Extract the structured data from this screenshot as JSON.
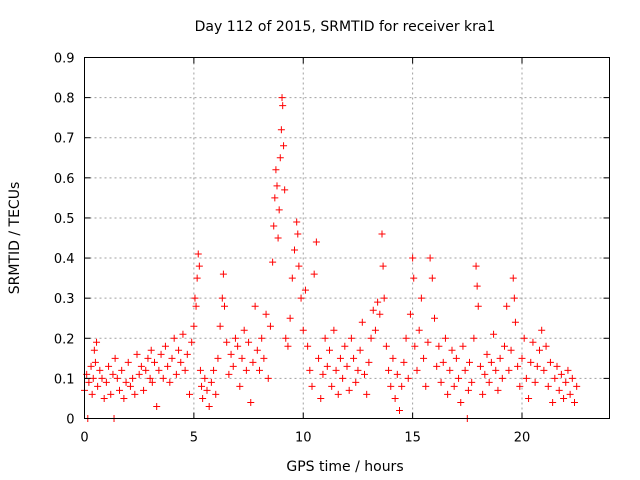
{
  "chart_data": {
    "type": "scatter",
    "title": "Day 112 of 2015, SRMTID for receiver kra1",
    "xlabel": "GPS time / hours",
    "ylabel": "SRMTID / TECUs",
    "xlim": [
      0,
      24
    ],
    "ylim": [
      0,
      0.9
    ],
    "xticks": [
      0,
      5,
      10,
      15,
      20
    ],
    "yticks": [
      0,
      0.1,
      0.2,
      0.3,
      0.4,
      0.5,
      0.6,
      0.7,
      0.8,
      0.9
    ],
    "xtick_labels": [
      "0",
      "5",
      "10",
      "15",
      "20"
    ],
    "ytick_labels": [
      "0",
      "0.1",
      "0.2",
      "0.3",
      "0.4",
      "0.5",
      "0.6",
      "0.7",
      "0.8",
      "0.9"
    ],
    "grid": true,
    "marker": "+",
    "color": "#ff0000",
    "series": [
      {
        "name": "SRMTID",
        "points": [
          [
            0.0,
            0.07
          ],
          [
            0.1,
            0.11
          ],
          [
            0.15,
            0.0
          ],
          [
            0.2,
            0.09
          ],
          [
            0.3,
            0.13
          ],
          [
            0.35,
            0.06
          ],
          [
            0.4,
            0.1
          ],
          [
            0.45,
            0.17
          ],
          [
            0.5,
            0.14
          ],
          [
            0.55,
            0.19
          ],
          [
            0.6,
            0.08
          ],
          [
            0.7,
            0.12
          ],
          [
            0.8,
            0.1
          ],
          [
            0.9,
            0.05
          ],
          [
            1.0,
            0.09
          ],
          [
            1.1,
            0.13
          ],
          [
            1.2,
            0.06
          ],
          [
            1.3,
            0.11
          ],
          [
            1.35,
            0.0
          ],
          [
            1.4,
            0.15
          ],
          [
            1.5,
            0.1
          ],
          [
            1.6,
            0.07
          ],
          [
            1.7,
            0.12
          ],
          [
            1.8,
            0.05
          ],
          [
            1.9,
            0.09
          ],
          [
            2.0,
            0.14
          ],
          [
            2.1,
            0.08
          ],
          [
            2.2,
            0.1
          ],
          [
            2.3,
            0.06
          ],
          [
            2.4,
            0.16
          ],
          [
            2.5,
            0.11
          ],
          [
            2.6,
            0.13
          ],
          [
            2.7,
            0.07
          ],
          [
            2.8,
            0.12
          ],
          [
            2.9,
            0.15
          ],
          [
            3.0,
            0.1
          ],
          [
            3.05,
            0.17
          ],
          [
            3.1,
            0.09
          ],
          [
            3.2,
            0.14
          ],
          [
            3.3,
            0.03
          ],
          [
            3.4,
            0.12
          ],
          [
            3.5,
            0.16
          ],
          [
            3.6,
            0.1
          ],
          [
            3.7,
            0.18
          ],
          [
            3.8,
            0.13
          ],
          [
            3.9,
            0.09
          ],
          [
            4.0,
            0.15
          ],
          [
            4.1,
            0.2
          ],
          [
            4.2,
            0.11
          ],
          [
            4.3,
            0.17
          ],
          [
            4.4,
            0.14
          ],
          [
            4.5,
            0.21
          ],
          [
            4.6,
            0.12
          ],
          [
            4.7,
            0.16
          ],
          [
            4.8,
            0.06
          ],
          [
            4.9,
            0.19
          ],
          [
            5.0,
            0.23
          ],
          [
            5.05,
            0.3
          ],
          [
            5.1,
            0.28
          ],
          [
            5.15,
            0.35
          ],
          [
            5.2,
            0.41
          ],
          [
            5.25,
            0.38
          ],
          [
            5.3,
            0.12
          ],
          [
            5.35,
            0.08
          ],
          [
            5.4,
            0.05
          ],
          [
            5.5,
            0.1
          ],
          [
            5.6,
            0.07
          ],
          [
            5.7,
            0.03
          ],
          [
            5.8,
            0.09
          ],
          [
            5.9,
            0.12
          ],
          [
            6.0,
            0.06
          ],
          [
            6.1,
            0.15
          ],
          [
            6.2,
            0.23
          ],
          [
            6.3,
            0.3
          ],
          [
            6.35,
            0.36
          ],
          [
            6.4,
            0.28
          ],
          [
            6.5,
            0.19
          ],
          [
            6.6,
            0.11
          ],
          [
            6.7,
            0.16
          ],
          [
            6.8,
            0.13
          ],
          [
            6.9,
            0.2
          ],
          [
            7.0,
            0.18
          ],
          [
            7.1,
            0.08
          ],
          [
            7.2,
            0.15
          ],
          [
            7.3,
            0.22
          ],
          [
            7.4,
            0.12
          ],
          [
            7.5,
            0.19
          ],
          [
            7.6,
            0.04
          ],
          [
            7.7,
            0.14
          ],
          [
            7.8,
            0.28
          ],
          [
            7.9,
            0.17
          ],
          [
            8.0,
            0.12
          ],
          [
            8.1,
            0.2
          ],
          [
            8.2,
            0.15
          ],
          [
            8.3,
            0.26
          ],
          [
            8.4,
            0.1
          ],
          [
            8.5,
            0.23
          ],
          [
            8.6,
            0.39
          ],
          [
            8.65,
            0.48
          ],
          [
            8.7,
            0.55
          ],
          [
            8.75,
            0.62
          ],
          [
            8.8,
            0.58
          ],
          [
            8.85,
            0.45
          ],
          [
            8.9,
            0.52
          ],
          [
            8.95,
            0.65
          ],
          [
            9.0,
            0.72
          ],
          [
            9.03,
            0.8
          ],
          [
            9.06,
            0.78
          ],
          [
            9.1,
            0.68
          ],
          [
            9.15,
            0.57
          ],
          [
            9.2,
            0.2
          ],
          [
            9.3,
            0.18
          ],
          [
            9.4,
            0.25
          ],
          [
            9.5,
            0.35
          ],
          [
            9.6,
            0.42
          ],
          [
            9.7,
            0.49
          ],
          [
            9.75,
            0.46
          ],
          [
            9.8,
            0.38
          ],
          [
            9.9,
            0.3
          ],
          [
            10.0,
            0.22
          ],
          [
            10.1,
            0.32
          ],
          [
            10.2,
            0.18
          ],
          [
            10.3,
            0.12
          ],
          [
            10.4,
            0.08
          ],
          [
            10.5,
            0.36
          ],
          [
            10.6,
            0.44
          ],
          [
            10.7,
            0.15
          ],
          [
            10.8,
            0.05
          ],
          [
            10.9,
            0.11
          ],
          [
            11.0,
            0.2
          ],
          [
            11.1,
            0.13
          ],
          [
            11.2,
            0.17
          ],
          [
            11.3,
            0.08
          ],
          [
            11.4,
            0.22
          ],
          [
            11.5,
            0.12
          ],
          [
            11.6,
            0.06
          ],
          [
            11.7,
            0.15
          ],
          [
            11.8,
            0.1
          ],
          [
            11.9,
            0.18
          ],
          [
            12.0,
            0.13
          ],
          [
            12.1,
            0.07
          ],
          [
            12.2,
            0.2
          ],
          [
            12.3,
            0.15
          ],
          [
            12.4,
            0.09
          ],
          [
            12.5,
            0.12
          ],
          [
            12.6,
            0.17
          ],
          [
            12.7,
            0.24
          ],
          [
            12.8,
            0.11
          ],
          [
            12.9,
            0.06
          ],
          [
            13.0,
            0.14
          ],
          [
            13.1,
            0.2
          ],
          [
            13.2,
            0.27
          ],
          [
            13.3,
            0.22
          ],
          [
            13.4,
            0.29
          ],
          [
            13.5,
            0.26
          ],
          [
            13.6,
            0.46
          ],
          [
            13.65,
            0.38
          ],
          [
            13.7,
            0.3
          ],
          [
            13.8,
            0.18
          ],
          [
            13.9,
            0.12
          ],
          [
            14.0,
            0.08
          ],
          [
            14.1,
            0.15
          ],
          [
            14.2,
            0.05
          ],
          [
            14.3,
            0.11
          ],
          [
            14.4,
            0.02
          ],
          [
            14.5,
            0.08
          ],
          [
            14.6,
            0.14
          ],
          [
            14.7,
            0.2
          ],
          [
            14.8,
            0.1
          ],
          [
            14.9,
            0.26
          ],
          [
            15.0,
            0.4
          ],
          [
            15.05,
            0.35
          ],
          [
            15.1,
            0.18
          ],
          [
            15.2,
            0.12
          ],
          [
            15.3,
            0.22
          ],
          [
            15.4,
            0.3
          ],
          [
            15.5,
            0.15
          ],
          [
            15.6,
            0.08
          ],
          [
            15.7,
            0.19
          ],
          [
            15.8,
            0.4
          ],
          [
            15.9,
            0.35
          ],
          [
            16.0,
            0.25
          ],
          [
            16.1,
            0.13
          ],
          [
            16.2,
            0.18
          ],
          [
            16.3,
            0.09
          ],
          [
            16.4,
            0.14
          ],
          [
            16.5,
            0.2
          ],
          [
            16.6,
            0.06
          ],
          [
            16.7,
            0.12
          ],
          [
            16.8,
            0.17
          ],
          [
            16.9,
            0.08
          ],
          [
            17.0,
            0.15
          ],
          [
            17.1,
            0.1
          ],
          [
            17.2,
            0.04
          ],
          [
            17.3,
            0.18
          ],
          [
            17.4,
            0.12
          ],
          [
            17.5,
            0.0
          ],
          [
            17.55,
            0.07
          ],
          [
            17.6,
            0.14
          ],
          [
            17.7,
            0.09
          ],
          [
            17.8,
            0.2
          ],
          [
            17.9,
            0.38
          ],
          [
            17.95,
            0.33
          ],
          [
            18.0,
            0.28
          ],
          [
            18.1,
            0.13
          ],
          [
            18.2,
            0.06
          ],
          [
            18.3,
            0.11
          ],
          [
            18.4,
            0.16
          ],
          [
            18.5,
            0.09
          ],
          [
            18.6,
            0.14
          ],
          [
            18.7,
            0.21
          ],
          [
            18.8,
            0.12
          ],
          [
            18.9,
            0.07
          ],
          [
            19.0,
            0.15
          ],
          [
            19.1,
            0.1
          ],
          [
            19.2,
            0.18
          ],
          [
            19.3,
            0.28
          ],
          [
            19.4,
            0.12
          ],
          [
            19.5,
            0.17
          ],
          [
            19.6,
            0.35
          ],
          [
            19.65,
            0.3
          ],
          [
            19.7,
            0.24
          ],
          [
            19.8,
            0.13
          ],
          [
            19.9,
            0.08
          ],
          [
            20.0,
            0.15
          ],
          [
            20.1,
            0.2
          ],
          [
            20.2,
            0.1
          ],
          [
            20.3,
            0.05
          ],
          [
            20.4,
            0.14
          ],
          [
            20.5,
            0.19
          ],
          [
            20.6,
            0.09
          ],
          [
            20.7,
            0.13
          ],
          [
            20.8,
            0.17
          ],
          [
            20.9,
            0.22
          ],
          [
            21.0,
            0.12
          ],
          [
            21.1,
            0.18
          ],
          [
            21.2,
            0.08
          ],
          [
            21.3,
            0.14
          ],
          [
            21.4,
            0.04
          ],
          [
            21.5,
            0.1
          ],
          [
            21.6,
            0.13
          ],
          [
            21.7,
            0.07
          ],
          [
            21.8,
            0.11
          ],
          [
            21.9,
            0.05
          ],
          [
            22.0,
            0.09
          ],
          [
            22.1,
            0.12
          ],
          [
            22.2,
            0.06
          ],
          [
            22.3,
            0.1
          ],
          [
            22.4,
            0.04
          ],
          [
            22.5,
            0.08
          ]
        ]
      }
    ]
  }
}
